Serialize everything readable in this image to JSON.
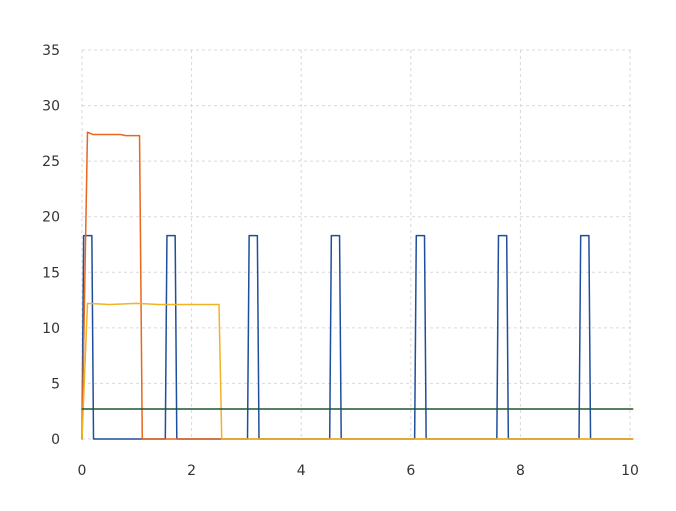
{
  "chart_data": {
    "type": "line",
    "title": "",
    "xlabel": "",
    "ylabel": "",
    "xlim": [
      0,
      10
    ],
    "ylim": [
      0,
      35
    ],
    "x_ticks": [
      0,
      2,
      4,
      6,
      8,
      10
    ],
    "y_ticks": [
      0,
      5,
      10,
      15,
      20,
      25,
      30,
      35
    ],
    "grid": true,
    "legend": "none",
    "series": [
      {
        "color": "#1f4e9c",
        "points": [
          [
            0.0,
            0
          ],
          [
            0.03,
            18.3
          ],
          [
            0.18,
            18.3
          ],
          [
            0.21,
            0
          ],
          [
            1.52,
            0
          ],
          [
            1.55,
            18.3
          ],
          [
            1.7,
            18.3
          ],
          [
            1.73,
            0
          ],
          [
            3.02,
            0
          ],
          [
            3.05,
            18.3
          ],
          [
            3.2,
            18.3
          ],
          [
            3.23,
            0
          ],
          [
            4.52,
            0
          ],
          [
            4.55,
            18.3
          ],
          [
            4.7,
            18.3
          ],
          [
            4.73,
            0
          ],
          [
            6.07,
            0
          ],
          [
            6.1,
            18.3
          ],
          [
            6.25,
            18.3
          ],
          [
            6.28,
            0
          ],
          [
            7.57,
            0
          ],
          [
            7.6,
            18.3
          ],
          [
            7.75,
            18.3
          ],
          [
            7.78,
            0
          ],
          [
            9.07,
            0
          ],
          [
            9.1,
            18.3
          ],
          [
            9.25,
            18.3
          ],
          [
            9.28,
            0
          ],
          [
            10.05,
            0
          ]
        ]
      },
      {
        "color": "#e8671f",
        "points": [
          [
            0.0,
            0
          ],
          [
            0.1,
            27.6
          ],
          [
            0.2,
            27.4
          ],
          [
            0.7,
            27.4
          ],
          [
            0.8,
            27.3
          ],
          [
            1.05,
            27.3
          ],
          [
            1.1,
            0
          ],
          [
            10.05,
            0
          ]
        ]
      },
      {
        "color": "#f0b323",
        "points": [
          [
            0.0,
            0
          ],
          [
            0.1,
            12.2
          ],
          [
            0.5,
            12.1
          ],
          [
            1.0,
            12.2
          ],
          [
            1.4,
            12.1
          ],
          [
            2.5,
            12.1
          ],
          [
            2.55,
            0
          ],
          [
            10.05,
            0
          ]
        ]
      },
      {
        "color": "#1e5631",
        "points": [
          [
            0.0,
            2.7
          ],
          [
            10.05,
            2.7
          ]
        ]
      }
    ]
  }
}
